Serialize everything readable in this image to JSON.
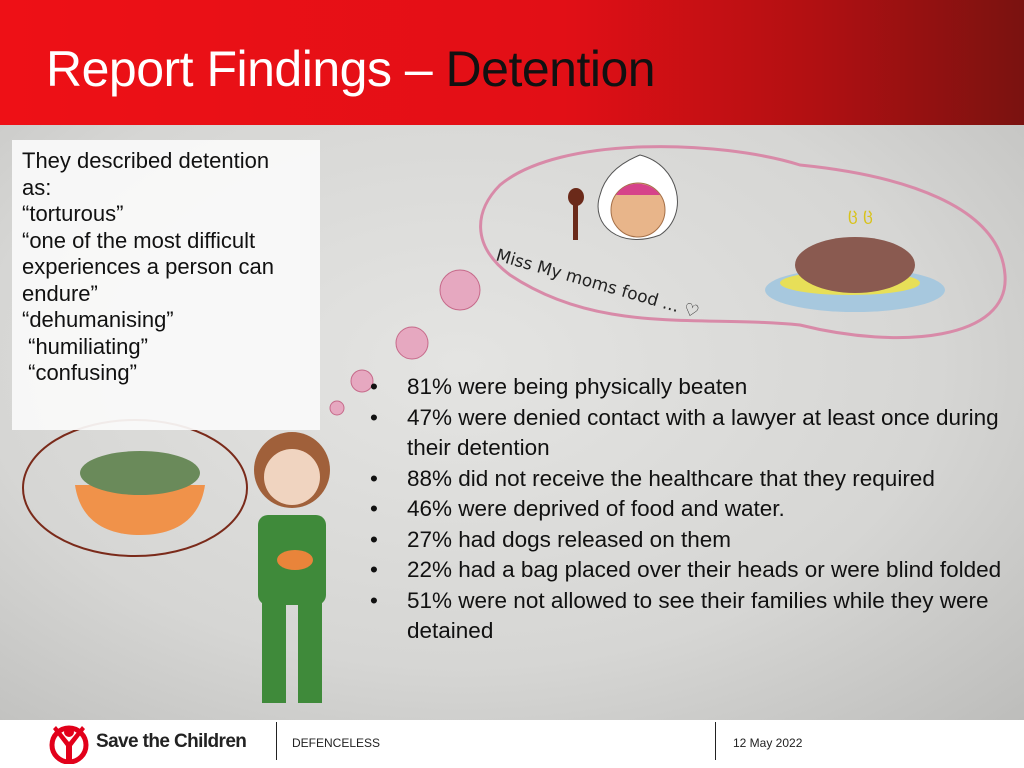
{
  "header": {
    "title_part1": "Report Findings – ",
    "title_part2": "Detention"
  },
  "quote_box": {
    "lines": [
      "They described detention",
      "as:",
      "“torturous”",
      "“one of the most difficult",
      "experiences a person can",
      "endure”",
      "“dehumanising”",
      " “humiliating”",
      " “confusing”"
    ]
  },
  "drawing": {
    "caption": "Miss My moms food ... ♡"
  },
  "findings": [
    "81% were being physically beaten",
    "47% were denied contact with a lawyer at least once during their detention",
    "88% did not receive the healthcare that they required",
    "46% were deprived of food and water.",
    "27% had dogs released on them",
    "22% had a bag placed over their heads or were blind folded",
    "51% were not allowed to see their families while they were detained"
  ],
  "footer": {
    "brand": "Save the Children",
    "project": "DEFENCELESS",
    "date": "12 May 2022"
  },
  "colors": {
    "header_red": "#e8101a",
    "brand_red": "#e2001a"
  }
}
